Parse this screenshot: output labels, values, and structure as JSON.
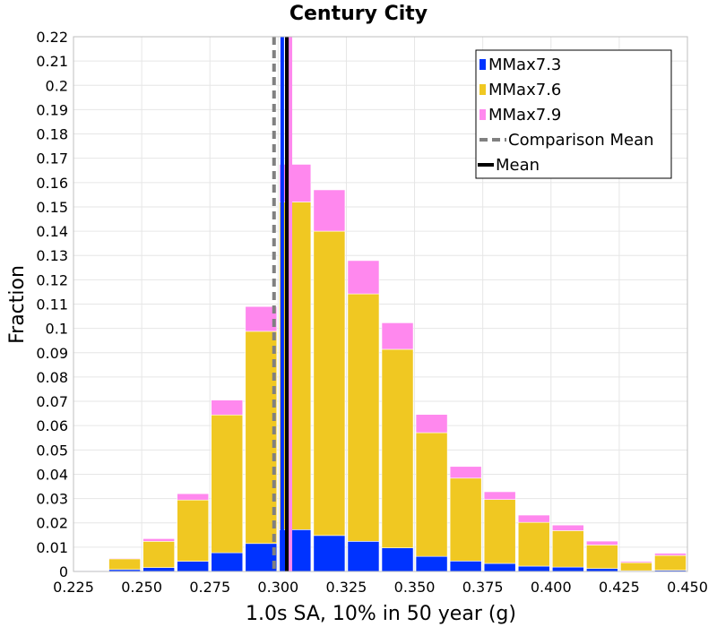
{
  "chart_data": {
    "type": "bar",
    "stacked": true,
    "title": "Century City",
    "xlabel": "1.0s SA, 10% in 50 year (g)",
    "ylabel": "Fraction",
    "xlim": [
      0.225,
      0.45
    ],
    "ylim": [
      0,
      0.22
    ],
    "bin_width": 0.0125,
    "bin_starts": [
      0.225,
      0.2375,
      0.25,
      0.2625,
      0.275,
      0.2875,
      0.3,
      0.3125,
      0.325,
      0.3375,
      0.35,
      0.3625,
      0.375,
      0.3875,
      0.4,
      0.4125,
      0.425,
      0.4375
    ],
    "x_ticks": [
      "0.225",
      "0.250",
      "0.275",
      "0.300",
      "0.325",
      "0.350",
      "0.375",
      "0.400",
      "0.425",
      "0.450"
    ],
    "y_ticks": [
      "0",
      "0.01",
      "0.02",
      "0.03",
      "0.04",
      "0.05",
      "0.06",
      "0.07",
      "0.08",
      "0.09",
      "0.1",
      "0.11",
      "0.12",
      "0.13",
      "0.14",
      "0.15",
      "0.16",
      "0.17",
      "0.18",
      "0.19",
      "0.2",
      "0.21",
      "0.22"
    ],
    "series": [
      {
        "name": "MMax7.3",
        "color": "#0033ff",
        "values": [
          0.0002,
          0.0008,
          0.0016,
          0.0042,
          0.0077,
          0.0115,
          0.0172,
          0.0148,
          0.0124,
          0.0097,
          0.0062,
          0.0043,
          0.0033,
          0.0022,
          0.0018,
          0.0012,
          0.0003,
          0.0005
        ]
      },
      {
        "name": "MMax7.6",
        "color": "#f0c822",
        "values": [
          0.0,
          0.0044,
          0.0108,
          0.0252,
          0.0567,
          0.0873,
          0.1348,
          0.1252,
          0.1018,
          0.0817,
          0.0509,
          0.0341,
          0.0263,
          0.018,
          0.015,
          0.0097,
          0.0033,
          0.0061
        ]
      },
      {
        "name": "MMax7.9",
        "color": "#ff88ee",
        "values": [
          0.0,
          0.0003,
          0.0011,
          0.0026,
          0.0061,
          0.0102,
          0.0155,
          0.017,
          0.0137,
          0.0109,
          0.0075,
          0.0048,
          0.0032,
          0.003,
          0.0023,
          0.0016,
          0.0005,
          0.0009
        ]
      }
    ],
    "lines": [
      {
        "name": "Comparison Mean",
        "x": 0.2985,
        "style": "dashed",
        "color": "#808080"
      },
      {
        "name": "Mean",
        "x": 0.3032,
        "style": "solid",
        "color": "#000000"
      },
      {
        "name": "MMax7.3 mean",
        "x": 0.3015,
        "style": "solid",
        "color": "#0033ff"
      },
      {
        "name": "MMax7.9 mean",
        "x": 0.3045,
        "style": "solid",
        "color": "#ff88ee"
      }
    ],
    "legend": {
      "position": "top-right",
      "entries": [
        {
          "label": "MMax7.3",
          "kind": "bar",
          "color": "#0033ff"
        },
        {
          "label": "MMax7.6",
          "kind": "bar",
          "color": "#f0c822"
        },
        {
          "label": "MMax7.9",
          "kind": "bar",
          "color": "#ff88ee"
        },
        {
          "label": "Comparison Mean",
          "kind": "dashed",
          "color": "#808080"
        },
        {
          "label": "Mean",
          "kind": "line",
          "color": "#000000"
        }
      ]
    },
    "grid": true
  }
}
